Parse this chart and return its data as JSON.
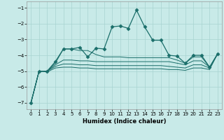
{
  "background_color": "#c8eae8",
  "grid_color": "#a8d4d0",
  "line_color": "#1a6e6a",
  "xlabel": "Humidex (Indice chaleur)",
  "xlim": [
    -0.5,
    23.5
  ],
  "ylim": [
    -7.4,
    -0.6
  ],
  "yticks": [
    -7,
    -6,
    -5,
    -4,
    -3,
    -2,
    -1
  ],
  "xticks": [
    0,
    1,
    2,
    3,
    4,
    5,
    6,
    7,
    8,
    9,
    10,
    11,
    12,
    13,
    14,
    15,
    16,
    17,
    18,
    19,
    20,
    21,
    22,
    23
  ],
  "line1_x": [
    0,
    1,
    2,
    3,
    4,
    5,
    6,
    7,
    8,
    9,
    10,
    11,
    12,
    13,
    14,
    15,
    16,
    17,
    18,
    19,
    20,
    21,
    22,
    23
  ],
  "line1_y": [
    -7.0,
    -5.0,
    -5.0,
    -4.4,
    -3.6,
    -3.6,
    -3.5,
    -4.1,
    -3.55,
    -3.6,
    -2.2,
    -2.15,
    -2.3,
    -1.15,
    -2.2,
    -3.05,
    -3.05,
    -4.0,
    -4.05,
    -4.5,
    -4.0,
    -4.0,
    -4.75,
    -3.9
  ],
  "line2_x": [
    0,
    1,
    2,
    3,
    4,
    5,
    6,
    7,
    8,
    9,
    10,
    11,
    12,
    13,
    14,
    15,
    16,
    17,
    18,
    19,
    20,
    21,
    22,
    23
  ],
  "line2_y": [
    -7.0,
    -5.0,
    -5.0,
    -4.5,
    -3.6,
    -3.6,
    -3.7,
    -3.7,
    -3.95,
    -4.1,
    -4.1,
    -4.1,
    -4.15,
    -4.15,
    -4.15,
    -4.15,
    -4.15,
    -4.15,
    -4.3,
    -4.5,
    -4.1,
    -4.1,
    -4.75,
    -3.9
  ],
  "line3_x": [
    0,
    1,
    2,
    3,
    4,
    5,
    6,
    7,
    8,
    9,
    10,
    11,
    12,
    13,
    14,
    15,
    16,
    17,
    18,
    19,
    20,
    21,
    22,
    23
  ],
  "line3_y": [
    -7.0,
    -5.0,
    -5.0,
    -4.6,
    -4.3,
    -4.3,
    -4.35,
    -4.35,
    -4.4,
    -4.4,
    -4.4,
    -4.4,
    -4.4,
    -4.4,
    -4.4,
    -4.4,
    -4.4,
    -4.4,
    -4.5,
    -4.6,
    -4.35,
    -4.35,
    -4.75,
    -3.9
  ],
  "line4_x": [
    0,
    1,
    2,
    3,
    4,
    5,
    6,
    7,
    8,
    9,
    10,
    11,
    12,
    13,
    14,
    15,
    16,
    17,
    18,
    19,
    20,
    21,
    22,
    23
  ],
  "line4_y": [
    -7.0,
    -5.0,
    -5.0,
    -4.7,
    -4.55,
    -4.55,
    -4.6,
    -4.6,
    -4.65,
    -4.65,
    -4.65,
    -4.65,
    -4.65,
    -4.65,
    -4.65,
    -4.65,
    -4.65,
    -4.7,
    -4.75,
    -4.8,
    -4.6,
    -4.6,
    -4.8,
    -3.9
  ],
  "line5_x": [
    0,
    1,
    2,
    3,
    4,
    5,
    6,
    7,
    8,
    9,
    10,
    11,
    12,
    13,
    14,
    15,
    16,
    17,
    18,
    19,
    20,
    21,
    22,
    23
  ],
  "line5_y": [
    -7.0,
    -5.0,
    -5.05,
    -4.8,
    -4.75,
    -4.75,
    -4.8,
    -4.8,
    -4.85,
    -4.85,
    -4.85,
    -4.85,
    -4.85,
    -4.85,
    -4.85,
    -4.85,
    -4.85,
    -4.9,
    -4.9,
    -4.95,
    -4.8,
    -4.8,
    -4.9,
    -3.9
  ]
}
